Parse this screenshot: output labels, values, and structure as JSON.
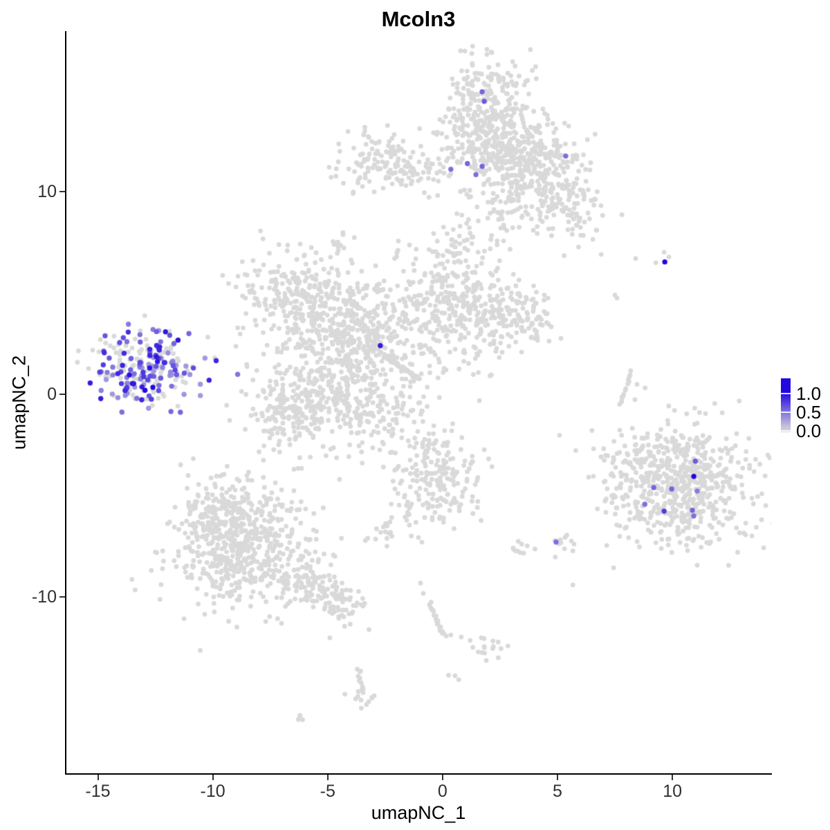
{
  "chart_data": {
    "type": "scatter",
    "title": "Mcoln3",
    "xlabel": "umapNC_1",
    "ylabel": "umapNC_2",
    "xlim": [
      -16.4,
      14.3
    ],
    "ylim": [
      -18.7,
      17.9
    ],
    "grid": false,
    "legend_position": "right",
    "x_ticks": {
      "values": [
        -15,
        -10,
        -5,
        0,
        5,
        10
      ],
      "labels": [
        "-15",
        "-10",
        "-5",
        "0",
        "5",
        "10"
      ]
    },
    "y_ticks": {
      "values": [
        10,
        0,
        -10
      ],
      "labels": [
        "10",
        "0",
        "-10"
      ]
    },
    "legend": {
      "tick_labels": [
        "1.0",
        "0.5",
        "0.0"
      ],
      "tick_values": [
        1.0,
        0.5,
        0.0
      ],
      "low_color": "#d9d9d9",
      "high_color": "#2107e0"
    },
    "style": {
      "point_radius_px": 3.4,
      "highlight_radius_px": 3.7,
      "background_point_color": "#d9d9d9"
    },
    "clusters": [
      {
        "id": "top-finger-a",
        "cx": 1.51,
        "cy": 14.33,
        "sx": 0.84,
        "sy": 1.3,
        "n": 170
      },
      {
        "id": "top-finger-b",
        "cx": 2.8,
        "cy": 13.24,
        "sx": 0.9,
        "sy": 1.3,
        "n": 170
      },
      {
        "id": "top-finger-base",
        "cx": 1.81,
        "cy": 12.01,
        "sx": 1.14,
        "sy": 0.75,
        "n": 130
      },
      {
        "id": "top-fan",
        "cx": 3.7,
        "cy": 10.85,
        "sx": 0.96,
        "sy": 1.02,
        "n": 150
      },
      {
        "id": "top-fan-right",
        "cx": 5.36,
        "cy": 9.62,
        "sx": 0.72,
        "sy": 0.89,
        "n": 90
      },
      {
        "id": "top-fan-upper",
        "cx": 4.58,
        "cy": 11.77,
        "sx": 0.78,
        "sy": 0.68,
        "n": 70
      },
      {
        "id": "top-fan-tip",
        "cx": 6.08,
        "cy": 8.7,
        "sx": 0.54,
        "sy": 0.61,
        "n": 25
      },
      {
        "id": "top-fan-lower",
        "cx": 2.86,
        "cy": 9.22,
        "sx": 0.9,
        "sy": 0.85,
        "n": 60
      },
      {
        "id": "band-left",
        "cx": -2.35,
        "cy": 11.36,
        "sx": 1.08,
        "sy": 0.82,
        "n": 140
      },
      {
        "id": "band-bridge",
        "cx": -0.84,
        "cy": 11.16,
        "sx": 0.66,
        "sy": 0.27,
        "n": 18
      },
      {
        "id": "neck-blob",
        "cx": -4.52,
        "cy": 7.44,
        "sx": 0.33,
        "sy": 0.34,
        "n": 12
      },
      {
        "id": "center-upper-left",
        "cx": -6.48,
        "cy": 4.95,
        "sx": 1.27,
        "sy": 1.09,
        "n": 210
      },
      {
        "id": "center-left",
        "cx": -4.97,
        "cy": 3.31,
        "sx": 1.14,
        "sy": 1.02,
        "n": 190
      },
      {
        "id": "center-core",
        "cx": -2.86,
        "cy": 3.48,
        "sx": 1.27,
        "sy": 1.3,
        "n": 260
      },
      {
        "id": "center-upper-finger",
        "cx": 0.45,
        "cy": 4.95,
        "sx": 0.96,
        "sy": 1.77,
        "n": 250
      },
      {
        "id": "center-right-arm",
        "cx": 2.35,
        "cy": 3.99,
        "sx": 1.14,
        "sy": 0.96,
        "n": 170
      },
      {
        "id": "center-right-tip",
        "cx": 3.67,
        "cy": 3.58,
        "sx": 0.48,
        "sy": 0.55,
        "n": 28
      },
      {
        "id": "center-lower-left",
        "cx": -4.82,
        "cy": 0.17,
        "sx": 1.81,
        "sy": 1.37,
        "n": 360
      },
      {
        "id": "center-lower-edge",
        "cx": -6.63,
        "cy": -0.96,
        "sx": 0.84,
        "sy": 0.82,
        "n": 110
      },
      {
        "id": "center-lower-scatter",
        "cx": -2.56,
        "cy": -0.85,
        "sx": 1.14,
        "sy": 0.75,
        "n": 70
      },
      {
        "id": "bottom-right-main",
        "cx": 10.39,
        "cy": -4.44,
        "sx": 1.57,
        "sy": 1.54,
        "n": 620
      },
      {
        "id": "bottom-right-west",
        "cx": 7.98,
        "cy": -4.1,
        "sx": 0.54,
        "sy": 1.19,
        "n": 40
      },
      {
        "id": "bottom-left-main",
        "cx": -8.67,
        "cy": -7.44,
        "sx": 1.57,
        "sy": 1.57,
        "n": 560
      },
      {
        "id": "bottom-left-upper",
        "cx": -9.64,
        "cy": -5.97,
        "sx": 0.9,
        "sy": 0.85,
        "n": 120
      },
      {
        "id": "bottom-left-tail-a",
        "cx": -5.78,
        "cy": -9.49,
        "sx": 0.78,
        "sy": 0.61,
        "n": 90
      },
      {
        "id": "bottom-left-tail-b",
        "cx": -4.31,
        "cy": -10.34,
        "sx": 0.54,
        "sy": 0.44,
        "n": 45
      },
      {
        "id": "mid-bottom",
        "cx": -0.21,
        "cy": -4.1,
        "sx": 0.9,
        "sy": 1.23,
        "n": 190
      },
      {
        "id": "mid-bottom-west-blob",
        "cx": -2.41,
        "cy": -6.83,
        "sx": 0.36,
        "sy": 0.31,
        "n": 14
      },
      {
        "id": "dot-blob-right",
        "cx": 5.0,
        "cy": -7.37,
        "sx": 0.33,
        "sy": 0.34,
        "n": 13
      },
      {
        "id": "dot-blob-small",
        "cx": 3.37,
        "cy": -7.58,
        "sx": 0.3,
        "sy": 0.31,
        "n": 10
      },
      {
        "id": "chain-blob",
        "cx": 2.17,
        "cy": -12.56,
        "sx": 0.45,
        "sy": 0.34,
        "n": 16
      },
      {
        "id": "bottom-strand-blob",
        "cx": -3.43,
        "cy": -14.95,
        "sx": 0.33,
        "sy": 0.31,
        "n": 11
      },
      {
        "id": "bottom-tiny-blob",
        "cx": -6.11,
        "cy": -16.11,
        "sx": 0.21,
        "sy": 0.17,
        "n": 4
      },
      {
        "id": "tiny-below-chain",
        "cx": 0.51,
        "cy": -13.98,
        "sx": 0.15,
        "sy": 0.12,
        "n": 3
      }
    ],
    "expressed_cluster": {
      "id": "left-expression-cluster",
      "cx": -12.8,
      "cy": 1.3,
      "sx": 1.2,
      "sy": 0.92,
      "n": 230,
      "expressed_fraction": 0.55,
      "value_min": 0.3,
      "value_max": 1.0
    },
    "strands": [
      {
        "id": "center-streak",
        "pts": [
          [
            -2.53,
            1.91
          ],
          [
            -0.99,
            0.72
          ]
        ],
        "n": 45,
        "jitter": 2
      },
      {
        "id": "left-cluster-strand",
        "pts": [
          [
            -12.29,
            1.98
          ],
          [
            -11.57,
            2.59
          ]
        ],
        "n": 6,
        "jitter": 1.5
      },
      {
        "id": "right-arc",
        "pts": [
          [
            8.22,
            1.13
          ],
          [
            8.07,
            0.55
          ],
          [
            7.86,
            -0.07
          ],
          [
            7.74,
            -0.48
          ]
        ],
        "n": 14,
        "jitter": 1.5
      },
      {
        "id": "chain",
        "pts": [
          [
            -0.57,
            -10.31
          ],
          [
            -0.27,
            -11.19
          ],
          [
            0.09,
            -11.95
          ]
        ],
        "n": 20,
        "jitter": 2.5
      },
      {
        "id": "bottom-strand",
        "pts": [
          [
            -3.67,
            -13.52
          ],
          [
            -3.49,
            -14.68
          ]
        ],
        "n": 12,
        "jitter": 2.5
      },
      {
        "id": "mid-strand",
        "pts": [
          [
            -1.39,
            -5.39
          ],
          [
            -1.63,
            -6.21
          ]
        ],
        "n": 8,
        "jitter": 2.5
      }
    ],
    "singles": [
      [
        6.9,
        6.89
      ],
      [
        8.4,
        6.69
      ],
      [
        9.28,
        6.48
      ],
      [
        9.64,
        7.0
      ],
      [
        9.85,
        6.76
      ],
      [
        7.5,
        4.88
      ],
      [
        7.59,
        4.74
      ],
      [
        8.46,
        0.48
      ],
      [
        8.37,
        -0.27
      ],
      [
        -12.26,
        2.05
      ],
      [
        -1.36,
        -7.0
      ],
      [
        -1.05,
        -7.07
      ],
      [
        -0.9,
        -7.3
      ],
      [
        -0.45,
        -6.08
      ],
      [
        0.36,
        -11.88
      ],
      [
        0.81,
        -11.98
      ],
      [
        1.2,
        -12.15
      ],
      [
        -0.96,
        -9.32
      ],
      [
        -0.84,
        -9.83
      ]
    ],
    "expressed_points": [
      [
        1.72,
        14.91,
        0.55
      ],
      [
        1.81,
        14.44,
        0.6
      ],
      [
        0.36,
        11.09,
        0.5
      ],
      [
        1.08,
        11.37,
        0.55
      ],
      [
        1.45,
        10.82,
        0.5
      ],
      [
        1.72,
        11.23,
        0.55
      ],
      [
        5.36,
        11.74,
        0.5
      ],
      [
        -2.71,
        2.39,
        0.9
      ],
      [
        9.67,
        6.52,
        1.0
      ],
      [
        -11.51,
        2.66,
        0.95
      ],
      [
        -11.69,
        2.49,
        0.55
      ],
      [
        11.0,
        -3.31,
        0.6
      ],
      [
        10.93,
        -4.06,
        1.0
      ],
      [
        9.19,
        -4.61,
        0.55
      ],
      [
        9.97,
        -4.68,
        0.55
      ],
      [
        11.08,
        -4.78,
        0.45
      ],
      [
        8.8,
        -5.43,
        0.5
      ],
      [
        9.64,
        -5.77,
        0.75
      ],
      [
        10.87,
        -5.73,
        0.55
      ],
      [
        10.93,
        -6.01,
        0.5
      ],
      [
        4.94,
        -7.3,
        0.5
      ]
    ]
  }
}
